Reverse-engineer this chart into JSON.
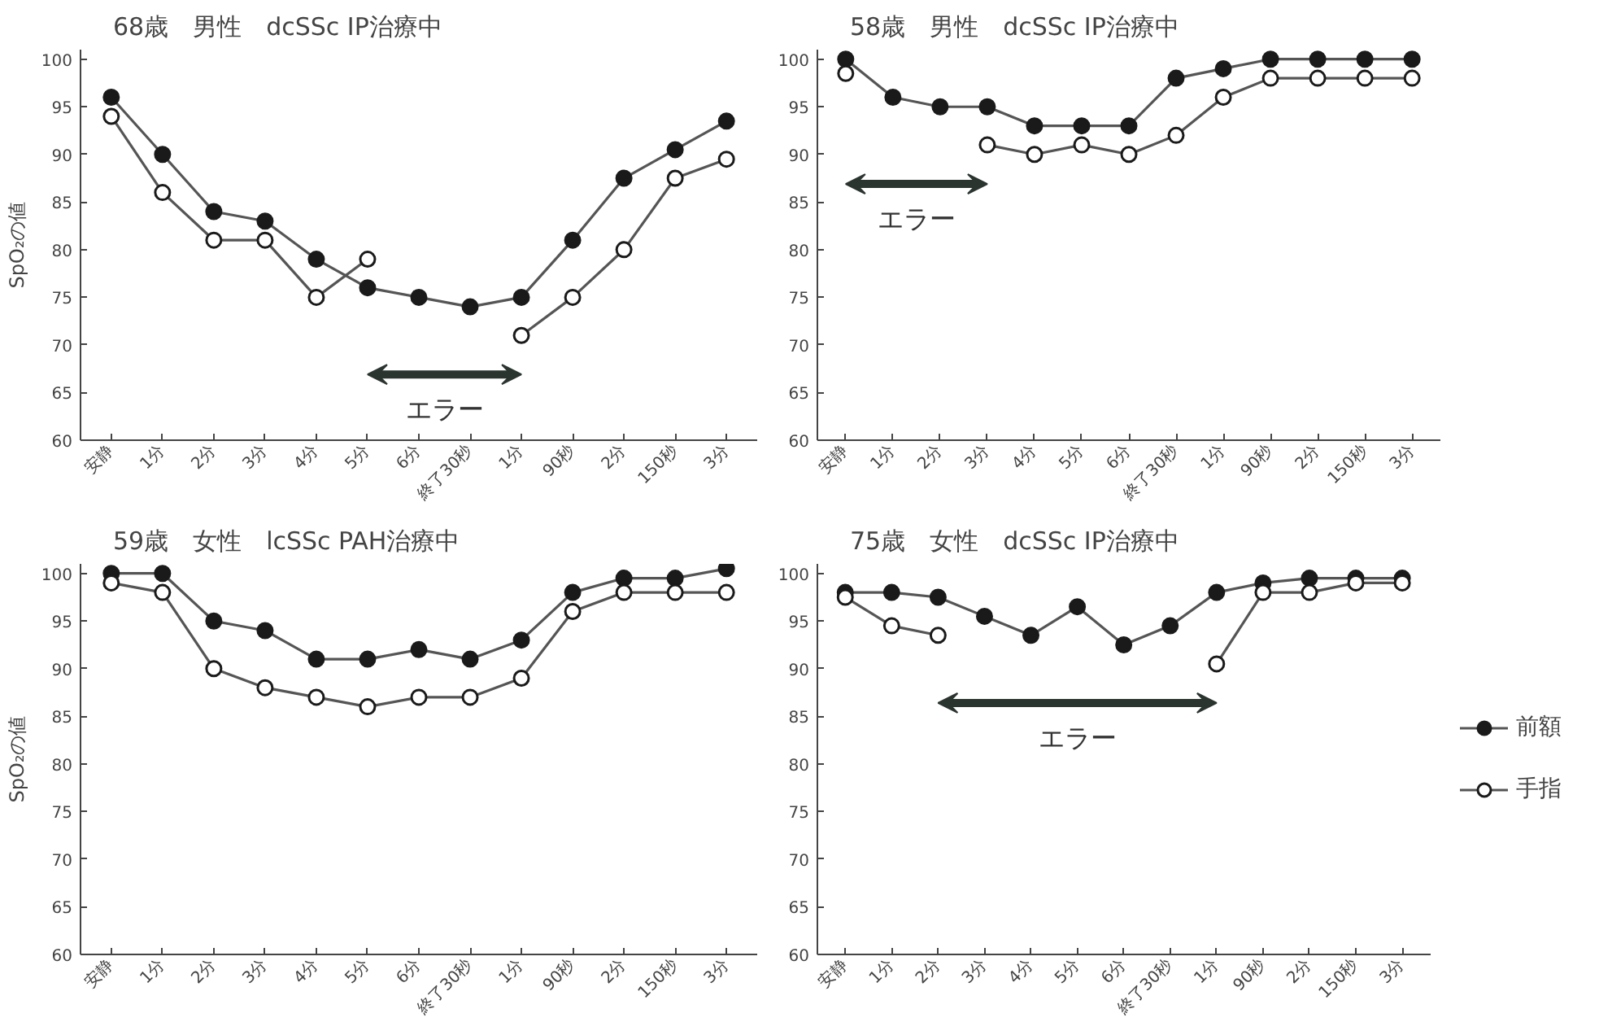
{
  "chart_data": [
    {
      "type": "line",
      "title": "68歳　男性　dcSSc IP治療中",
      "ylabel": "SpO₂の値",
      "categories": [
        "安静",
        "1分",
        "2分",
        "3分",
        "4分",
        "5分",
        "6分",
        "終了30秒",
        "1分",
        "90秒",
        "2分",
        "150秒",
        "3分"
      ],
      "ylim": [
        60,
        101
      ],
      "yticks": [
        60,
        65,
        70,
        75,
        80,
        85,
        90,
        95,
        100
      ],
      "marker": "circle",
      "grid": false,
      "annotations": [
        "エラー"
      ],
      "series": [
        {
          "color": "#1a1a1a",
          "values": [
            96,
            90,
            84,
            83,
            79,
            76,
            75,
            74,
            75,
            81,
            87.5,
            90.5,
            93.5
          ]
        },
        {
          "color": "#ffffff",
          "values": [
            94,
            86,
            81,
            81,
            75,
            79,
            null,
            null,
            71,
            75,
            80,
            87.5,
            89.5
          ]
        }
      ]
    },
    {
      "type": "line",
      "title": "58歳　男性　dcSSc IP治療中",
      "categories": [
        "安静",
        "1分",
        "2分",
        "3分",
        "4分",
        "5分",
        "6分",
        "終了30秒",
        "1分",
        "90秒",
        "2分",
        "150秒",
        "3分"
      ],
      "ylim": [
        60,
        101
      ],
      "yticks": [
        60,
        65,
        70,
        75,
        80,
        85,
        90,
        95,
        100
      ],
      "marker": "circle",
      "grid": false,
      "annotations": [
        "エラー"
      ],
      "series": [
        {
          "color": "#1a1a1a",
          "values": [
            100,
            96,
            95,
            95,
            93,
            93,
            93,
            98,
            99,
            100,
            100,
            100,
            100
          ]
        },
        {
          "color": "#ffffff",
          "values": [
            98.5,
            null,
            null,
            91,
            90,
            91,
            90,
            92,
            96,
            98,
            98,
            98,
            98
          ]
        }
      ]
    },
    {
      "type": "line",
      "title": "59歳　女性　lcSSc PAH治療中",
      "ylabel": "SpO₂の値",
      "categories": [
        "安静",
        "1分",
        "2分",
        "3分",
        "4分",
        "5分",
        "6分",
        "終了30秒",
        "1分",
        "90秒",
        "2分",
        "150秒",
        "3分"
      ],
      "ylim": [
        60,
        101
      ],
      "yticks": [
        60,
        65,
        70,
        75,
        80,
        85,
        90,
        95,
        100
      ],
      "marker": "circle",
      "grid": false,
      "series": [
        {
          "color": "#1a1a1a",
          "values": [
            100,
            100,
            95,
            94,
            91,
            91,
            92,
            91,
            93,
            98,
            99.5,
            99.5,
            100.5
          ]
        },
        {
          "color": "#ffffff",
          "values": [
            99,
            98,
            90,
            88,
            87,
            86,
            87,
            87,
            89,
            96,
            98,
            98,
            98
          ]
        }
      ]
    },
    {
      "type": "line",
      "title": "75歳　女性　dcSSc IP治療中",
      "categories": [
        "安静",
        "1分",
        "2分",
        "3分",
        "4分",
        "5分",
        "6分",
        "終了30秒",
        "1分",
        "90秒",
        "2分",
        "150秒",
        "3分"
      ],
      "ylim": [
        60,
        101
      ],
      "yticks": [
        60,
        65,
        70,
        75,
        80,
        85,
        90,
        95,
        100
      ],
      "marker": "circle",
      "grid": false,
      "legend": "right",
      "annotations": [
        "エラー"
      ],
      "series": [
        {
          "name": "前額",
          "color": "#1a1a1a",
          "values": [
            98,
            98,
            97.5,
            95.5,
            93.5,
            96.5,
            92.5,
            94.5,
            98,
            99,
            99.5,
            99.5,
            99.5
          ]
        },
        {
          "name": "手指",
          "color": "#ffffff",
          "values": [
            97.5,
            94.5,
            93.5,
            null,
            null,
            null,
            null,
            null,
            90.5,
            98,
            98,
            99,
            99
          ]
        }
      ]
    }
  ]
}
